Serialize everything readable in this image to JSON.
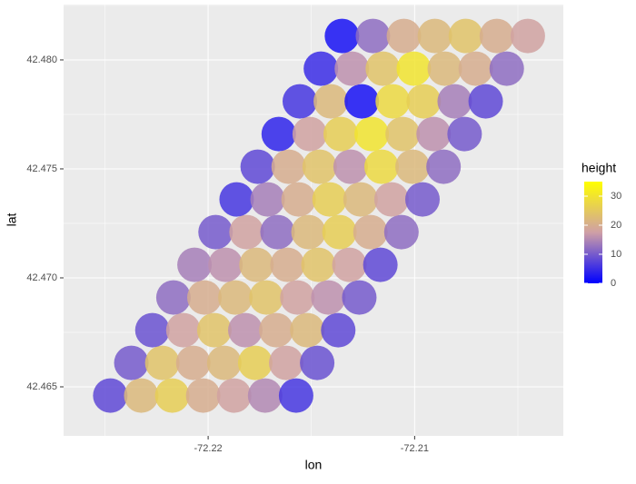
{
  "chart_data": {
    "type": "scatter",
    "x_label": "lon",
    "y_label": "lat",
    "color_label": "height",
    "x": [
      -72.22474,
      -72.22324,
      -72.22174,
      -72.22024,
      -72.21874,
      -72.21724,
      -72.21574,
      -72.22372,
      -72.22222,
      -72.22072,
      -72.21922,
      -72.21772,
      -72.21622,
      -72.21472,
      -72.2227,
      -72.2212,
      -72.2197,
      -72.2182,
      -72.2167,
      -72.2152,
      -72.2137,
      -72.22168,
      -72.22018,
      -72.21868,
      -72.21718,
      -72.21568,
      -72.21418,
      -72.21268,
      -72.22066,
      -72.21916,
      -72.21766,
      -72.21616,
      -72.21466,
      -72.21316,
      -72.21166,
      -72.21964,
      -72.21814,
      -72.21664,
      -72.21514,
      -72.21364,
      -72.21214,
      -72.21064,
      -72.21862,
      -72.21712,
      -72.21562,
      -72.21412,
      -72.21262,
      -72.21112,
      -72.20962,
      -72.2176,
      -72.2161,
      -72.2146,
      -72.2131,
      -72.2116,
      -72.2101,
      -72.2086,
      -72.21658,
      -72.21508,
      -72.21358,
      -72.21208,
      -72.21058,
      -72.20908,
      -72.20758,
      -72.21556,
      -72.21406,
      -72.21256,
      -72.21106,
      -72.20956,
      -72.20806,
      -72.20656,
      -72.21454,
      -72.21304,
      -72.21154,
      -72.21004,
      -72.20854,
      -72.20704,
      -72.20554,
      -72.21352,
      -72.21202,
      -72.21052,
      -72.20902,
      -72.20752,
      -72.20602,
      -72.20452
    ],
    "y": [
      42.4646,
      42.4646,
      42.4646,
      42.4646,
      42.4646,
      42.4646,
      42.4646,
      42.4661,
      42.4661,
      42.4661,
      42.4661,
      42.4661,
      42.4661,
      42.4661,
      42.4676,
      42.4676,
      42.4676,
      42.4676,
      42.4676,
      42.4676,
      42.4676,
      42.4691,
      42.4691,
      42.4691,
      42.4691,
      42.4691,
      42.4691,
      42.4691,
      42.4706,
      42.4706,
      42.4706,
      42.4706,
      42.4706,
      42.4706,
      42.4706,
      42.4721,
      42.4721,
      42.4721,
      42.4721,
      42.4721,
      42.4721,
      42.4721,
      42.4736,
      42.4736,
      42.4736,
      42.4736,
      42.4736,
      42.4736,
      42.4736,
      42.4751,
      42.4751,
      42.4751,
      42.4751,
      42.4751,
      42.4751,
      42.4751,
      42.4766,
      42.4766,
      42.4766,
      42.4766,
      42.4766,
      42.4766,
      42.4766,
      42.4781,
      42.4781,
      42.4781,
      42.4781,
      42.4781,
      42.4781,
      42.4781,
      42.4796,
      42.4796,
      42.4796,
      42.4796,
      42.4796,
      42.4796,
      42.4796,
      42.4811,
      42.4811,
      42.4811,
      42.4811,
      42.4811,
      42.4811,
      42.4811
    ],
    "color_values": [
      8,
      22,
      26,
      20,
      18,
      15,
      6,
      10,
      24,
      20,
      22,
      26,
      18,
      9,
      9,
      18,
      24,
      16,
      20,
      22,
      8,
      12,
      20,
      22,
      24,
      18,
      16,
      10,
      14,
      16,
      22,
      20,
      24,
      18,
      8,
      10,
      18,
      12,
      22,
      26,
      20,
      12,
      6,
      14,
      20,
      26,
      22,
      18,
      10,
      8,
      20,
      24,
      16,
      28,
      22,
      12,
      4,
      18,
      26,
      30,
      24,
      16,
      10,
      6,
      22,
      2,
      28,
      26,
      14,
      8,
      5,
      16,
      24,
      30,
      22,
      20,
      12,
      2,
      12,
      20,
      22,
      24,
      20,
      18
    ],
    "xlim": [
      -72.227,
      -72.2028
    ],
    "ylim": [
      42.46275,
      42.48254
    ],
    "xticks": [
      -72.22,
      -72.21
    ],
    "yticks": [
      42.465,
      {
        "value": 42.47,
        "label": "42.470"
      },
      42.475,
      {
        "value": 42.48,
        "label": "42.480"
      }
    ],
    "x_minor_ticks": [
      -72.225,
      -72.215,
      -72.205
    ],
    "y_minor_ticks": [
      42.4675,
      42.4725,
      42.4775,
      42.4825
    ],
    "color_lim": [
      0,
      35
    ],
    "color_ticks": [
      0,
      10,
      20,
      30
    ],
    "color_scale": [
      "#0000ff",
      "#cf9fa6",
      "#ffff00"
    ],
    "grid": true,
    "legend": "right",
    "panel_color": "#ebebeb"
  }
}
